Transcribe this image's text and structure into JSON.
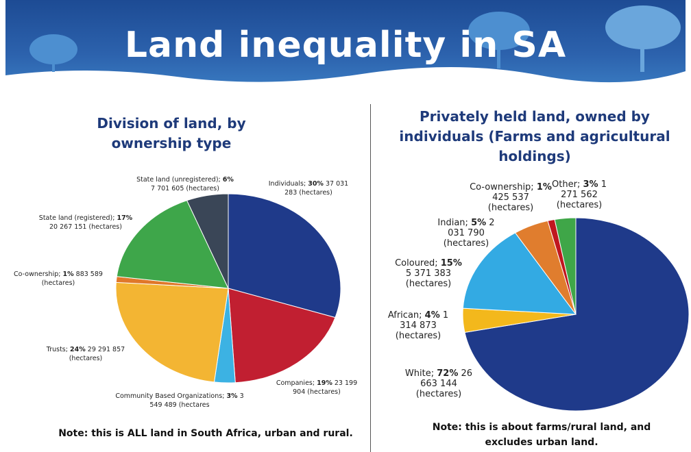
{
  "title": "Land inequality in SA",
  "chart_data": [
    {
      "type": "pie",
      "title": "Division of land, by ownership type",
      "categories": [
        "Individuals;",
        "Companies;",
        "Community Based Organizations;",
        "Trusts;",
        "Co-ownership;",
        "State land (registered);",
        "State land (unregistered);"
      ],
      "values": [
        30,
        19,
        3,
        24,
        1,
        17,
        6
      ],
      "value_labels": [
        "30%",
        "19%",
        "3%",
        "24%",
        "1%",
        "17%",
        "6%"
      ],
      "hectare_labels": [
        "37 031 283 (hectares)",
        "23 199 904 (hectares)",
        "3 549 489 (hectares",
        "29 291 857 (hectares)",
        "883 589 (hectares)",
        "20 267 151 (hectares)",
        "7 701 605 (hectares)"
      ],
      "colors": [
        "#1f3a8a",
        "#c11f31",
        "#3cb2e3",
        "#f3b533",
        "#e0782a",
        "#3ea64a",
        "#3a4657"
      ],
      "note": "Note: this is ALL land in South Africa, urban and rural."
    },
    {
      "type": "pie",
      "title": "Privately held land, owned by individuals (Farms and agricultural holdings)",
      "categories": [
        "White;",
        "African;",
        "Coloured;",
        "Indian;",
        "Co-ownership;",
        "Other;"
      ],
      "values": [
        72,
        4,
        15,
        5,
        1,
        3
      ],
      "value_labels": [
        "72%",
        "4%",
        "15%",
        "5%",
        "1%",
        "3%"
      ],
      "hectare_labels": [
        "26 663 144 (hectares)",
        "1 314 873 (hectares)",
        "5 371 383 (hectares)",
        "2 031 790 (hectares)",
        "425 537 (hectares)",
        "1 271 562 (hectares)"
      ],
      "colors": [
        "#1f3a8a",
        "#f3b81c",
        "#33aae3",
        "#e07d2e",
        "#c0171f",
        "#3fa648"
      ],
      "note": "Note: this is about farms/rural land, and excludes urban land."
    }
  ]
}
